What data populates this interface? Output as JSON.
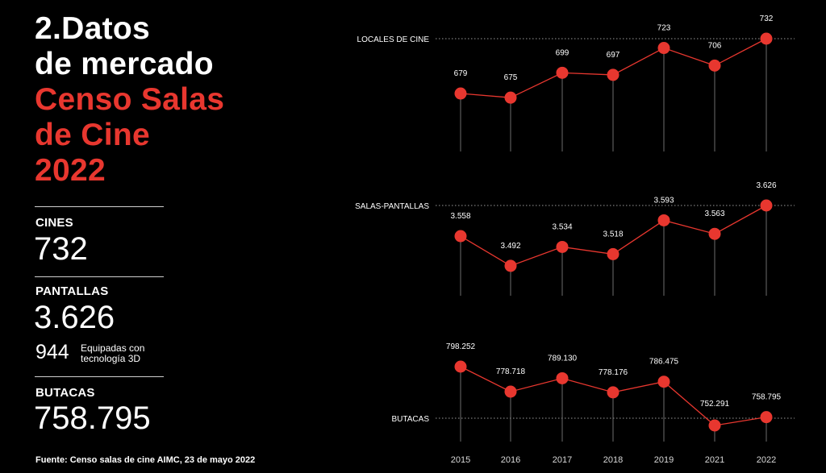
{
  "title": {
    "line1": "2.Datos",
    "line2": "de mercado",
    "line3": "Censo Salas",
    "line4": "de Cine",
    "line5": "2022"
  },
  "stats": {
    "cines": {
      "label": "CINES",
      "value": "732"
    },
    "pantallas": {
      "label": "PANTALLAS",
      "value": "3.626"
    },
    "tresd": {
      "value": "944",
      "text": "Equipadas con tecnología 3D"
    },
    "butacas": {
      "label": "BUTACAS",
      "value": "758.795"
    }
  },
  "source": "Fuente: Censo salas de cine AIMC, 23 de mayo 2022",
  "colors": {
    "accent": "#e8372f",
    "background": "#000000"
  },
  "chart_data": [
    {
      "type": "line",
      "title": "LOCALES DE CINE",
      "x": [
        "2015",
        "2016",
        "2017",
        "2018",
        "2019",
        "2021",
        "2022"
      ],
      "values": [
        679,
        675,
        699,
        697,
        723,
        706,
        732
      ],
      "labels": [
        "679",
        "675",
        "699",
        "697",
        "723",
        "706",
        "732"
      ],
      "ylim": [
        665,
        732
      ]
    },
    {
      "type": "line",
      "title": "SALAS-PANTALLAS",
      "x": [
        "2015",
        "2016",
        "2017",
        "2018",
        "2019",
        "2021",
        "2022"
      ],
      "values": [
        3558,
        3492,
        3534,
        3518,
        3593,
        3563,
        3626
      ],
      "labels": [
        "3.558",
        "3.492",
        "3.534",
        "3.518",
        "3.593",
        "3.563",
        "3.626"
      ],
      "ylim": [
        3474,
        3626
      ]
    },
    {
      "type": "line",
      "title": "BUTACAS",
      "x": [
        "2015",
        "2016",
        "2017",
        "2018",
        "2019",
        "2021",
        "2022"
      ],
      "values": [
        798252,
        778718,
        789130,
        778176,
        786475,
        752291,
        758795
      ],
      "labels": [
        "798.252",
        "778.718",
        "789.130",
        "778.176",
        "786.475",
        "752.291",
        "758.795"
      ],
      "ylim": [
        752291,
        798252
      ]
    }
  ]
}
